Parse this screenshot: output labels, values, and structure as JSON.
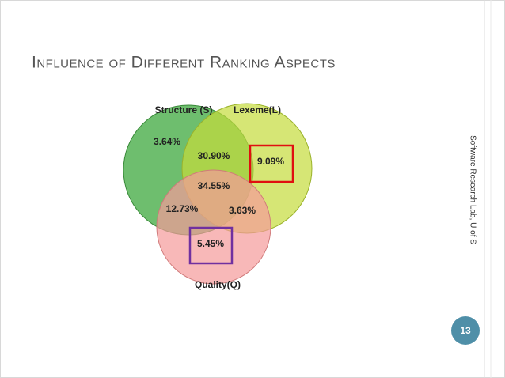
{
  "title": "Influence of Different Ranking Aspects",
  "venn": {
    "sets": [
      {
        "label": "Structure (S)"
      },
      {
        "label": "Lexeme(L)"
      },
      {
        "label": "Quality(Q)"
      }
    ],
    "regions": [
      "3.64%",
      "30.90%",
      "9.09%",
      "34.55%",
      "12.73%",
      "3.63%",
      "5.45%"
    ]
  },
  "footer": "Software Research Lab, U of S",
  "page_number": "13"
}
